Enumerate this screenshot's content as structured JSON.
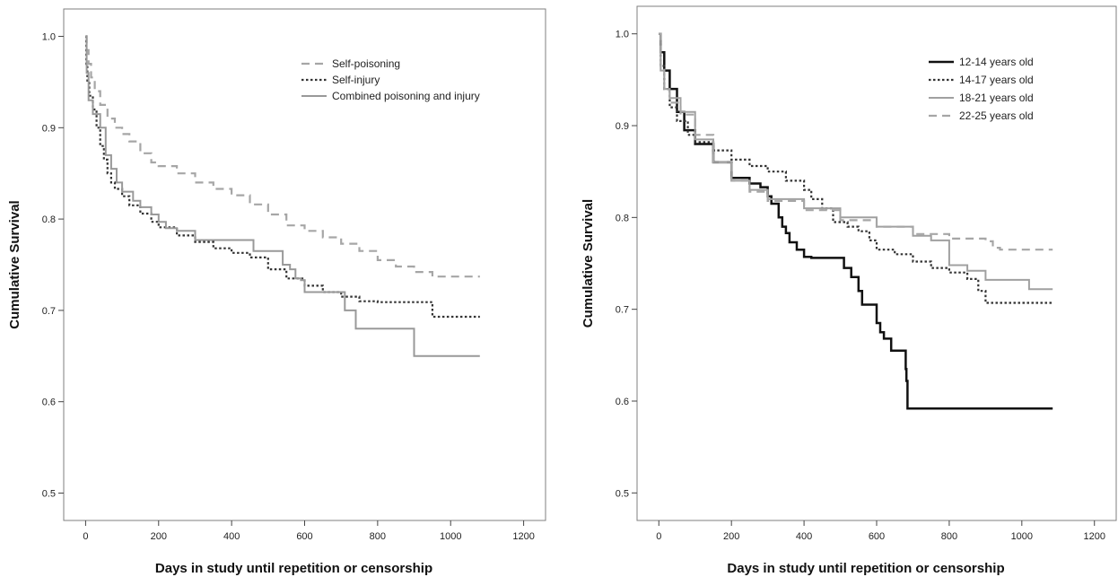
{
  "chart_data": [
    {
      "type": "line",
      "step": true,
      "xlabel": "Days in study until repetition or censorship",
      "ylabel": "Cumulative Survival",
      "xlim": [
        -60,
        1260
      ],
      "ylim": [
        0.47,
        1.03
      ],
      "xticks": [
        0,
        200,
        400,
        600,
        800,
        1000,
        1200
      ],
      "xtick_labels": [
        "0",
        "200",
        "400",
        "600",
        "800",
        "1000",
        "1200"
      ],
      "yticks": [
        0.5,
        0.6,
        0.7,
        0.8,
        0.9,
        1.0
      ],
      "ytick_labels": [
        "0.5",
        "0.6",
        "0.7",
        "0.8",
        "0.9",
        "1.0"
      ],
      "legend_position": "top-right",
      "series": [
        {
          "name": "Self-poisoning",
          "style": "dashed",
          "color": "#a6a6a6",
          "points": [
            [
              0,
              1.0
            ],
            [
              3,
              0.985
            ],
            [
              8,
              0.97
            ],
            [
              15,
              0.955
            ],
            [
              25,
              0.94
            ],
            [
              40,
              0.925
            ],
            [
              60,
              0.91
            ],
            [
              80,
              0.9
            ],
            [
              100,
              0.893
            ],
            [
              120,
              0.885
            ],
            [
              150,
              0.872
            ],
            [
              180,
              0.862
            ],
            [
              200,
              0.858
            ],
            [
              250,
              0.85
            ],
            [
              300,
              0.84
            ],
            [
              350,
              0.833
            ],
            [
              400,
              0.826
            ],
            [
              450,
              0.816
            ],
            [
              500,
              0.805
            ],
            [
              550,
              0.793
            ],
            [
              600,
              0.787
            ],
            [
              650,
              0.78
            ],
            [
              700,
              0.773
            ],
            [
              750,
              0.765
            ],
            [
              800,
              0.755
            ],
            [
              850,
              0.748
            ],
            [
              900,
              0.742
            ],
            [
              950,
              0.737
            ],
            [
              1080,
              0.737
            ]
          ]
        },
        {
          "name": "Self-injury",
          "style": "dotted",
          "color": "#333333",
          "points": [
            [
              0,
              1.0
            ],
            [
              2,
              0.97
            ],
            [
              5,
              0.95
            ],
            [
              10,
              0.935
            ],
            [
              20,
              0.92
            ],
            [
              30,
              0.9
            ],
            [
              40,
              0.88
            ],
            [
              50,
              0.865
            ],
            [
              60,
              0.85
            ],
            [
              70,
              0.84
            ],
            [
              80,
              0.833
            ],
            [
              100,
              0.825
            ],
            [
              120,
              0.815
            ],
            [
              150,
              0.806
            ],
            [
              180,
              0.797
            ],
            [
              200,
              0.791
            ],
            [
              250,
              0.782
            ],
            [
              300,
              0.775
            ],
            [
              350,
              0.768
            ],
            [
              400,
              0.763
            ],
            [
              450,
              0.758
            ],
            [
              500,
              0.745
            ],
            [
              550,
              0.735
            ],
            [
              600,
              0.727
            ],
            [
              650,
              0.72
            ],
            [
              700,
              0.715
            ],
            [
              750,
              0.71
            ],
            [
              800,
              0.709
            ],
            [
              900,
              0.709
            ],
            [
              950,
              0.693
            ],
            [
              1080,
              0.693
            ]
          ]
        },
        {
          "name": "Combined poisoning and injury",
          "style": "solid",
          "color": "#999999",
          "points": [
            [
              0,
              1.0
            ],
            [
              3,
              0.96
            ],
            [
              8,
              0.93
            ],
            [
              20,
              0.915
            ],
            [
              40,
              0.9
            ],
            [
              55,
              0.87
            ],
            [
              70,
              0.855
            ],
            [
              85,
              0.84
            ],
            [
              100,
              0.83
            ],
            [
              130,
              0.82
            ],
            [
              150,
              0.813
            ],
            [
              180,
              0.805
            ],
            [
              200,
              0.797
            ],
            [
              220,
              0.79
            ],
            [
              250,
              0.787
            ],
            [
              300,
              0.777
            ],
            [
              400,
              0.777
            ],
            [
              460,
              0.765
            ],
            [
              500,
              0.765
            ],
            [
              540,
              0.75
            ],
            [
              560,
              0.745
            ],
            [
              575,
              0.735
            ],
            [
              590,
              0.733
            ],
            [
              600,
              0.72
            ],
            [
              700,
              0.72
            ],
            [
              710,
              0.7
            ],
            [
              740,
              0.68
            ],
            [
              900,
              0.65
            ],
            [
              1080,
              0.65
            ]
          ]
        }
      ]
    },
    {
      "type": "line",
      "step": true,
      "xlabel": "Days in study until repetition or censorship",
      "ylabel": "Cumulative Survival",
      "xlim": [
        -60,
        1260
      ],
      "ylim": [
        0.47,
        1.03
      ],
      "xticks": [
        0,
        200,
        400,
        600,
        800,
        1000,
        1200
      ],
      "xtick_labels": [
        "0",
        "200",
        "400",
        "600",
        "800",
        "1000",
        "1200"
      ],
      "yticks": [
        0.5,
        0.6,
        0.7,
        0.8,
        0.9,
        1.0
      ],
      "ytick_labels": [
        "0.5",
        "0.6",
        "0.7",
        "0.8",
        "0.9",
        "1.0"
      ],
      "legend_position": "top-right",
      "series": [
        {
          "name": "12-14 years old",
          "style": "solid-heavy",
          "color": "#111111",
          "points": [
            [
              0,
              1.0
            ],
            [
              5,
              0.98
            ],
            [
              15,
              0.96
            ],
            [
              30,
              0.94
            ],
            [
              50,
              0.915
            ],
            [
              70,
              0.895
            ],
            [
              100,
              0.88
            ],
            [
              150,
              0.86
            ],
            [
              200,
              0.843
            ],
            [
              250,
              0.837
            ],
            [
              280,
              0.833
            ],
            [
              300,
              0.823
            ],
            [
              310,
              0.815
            ],
            [
              330,
              0.8
            ],
            [
              340,
              0.79
            ],
            [
              350,
              0.783
            ],
            [
              360,
              0.773
            ],
            [
              380,
              0.765
            ],
            [
              400,
              0.757
            ],
            [
              420,
              0.756
            ],
            [
              500,
              0.756
            ],
            [
              510,
              0.745
            ],
            [
              530,
              0.735
            ],
            [
              550,
              0.72
            ],
            [
              560,
              0.705
            ],
            [
              590,
              0.705
            ],
            [
              600,
              0.685
            ],
            [
              610,
              0.675
            ],
            [
              620,
              0.668
            ],
            [
              640,
              0.655
            ],
            [
              680,
              0.635
            ],
            [
              682,
              0.622
            ],
            [
              685,
              0.592
            ],
            [
              1085,
              0.592
            ]
          ]
        },
        {
          "name": "14-17 years old",
          "style": "dotted",
          "color": "#333333",
          "points": [
            [
              0,
              1.0
            ],
            [
              5,
              0.965
            ],
            [
              15,
              0.94
            ],
            [
              30,
              0.92
            ],
            [
              50,
              0.905
            ],
            [
              80,
              0.89
            ],
            [
              100,
              0.882
            ],
            [
              150,
              0.873
            ],
            [
              200,
              0.863
            ],
            [
              250,
              0.856
            ],
            [
              300,
              0.85
            ],
            [
              350,
              0.84
            ],
            [
              400,
              0.83
            ],
            [
              420,
              0.82
            ],
            [
              450,
              0.81
            ],
            [
              480,
              0.795
            ],
            [
              520,
              0.79
            ],
            [
              550,
              0.785
            ],
            [
              580,
              0.775
            ],
            [
              600,
              0.765
            ],
            [
              650,
              0.76
            ],
            [
              700,
              0.752
            ],
            [
              750,
              0.745
            ],
            [
              800,
              0.74
            ],
            [
              850,
              0.733
            ],
            [
              880,
              0.72
            ],
            [
              900,
              0.707
            ],
            [
              1085,
              0.707
            ]
          ]
        },
        {
          "name": "18-21 years old",
          "style": "solid",
          "color": "#a0a0a0",
          "points": [
            [
              0,
              1.0
            ],
            [
              5,
              0.96
            ],
            [
              15,
              0.94
            ],
            [
              30,
              0.93
            ],
            [
              60,
              0.915
            ],
            [
              100,
              0.885
            ],
            [
              150,
              0.86
            ],
            [
              200,
              0.84
            ],
            [
              250,
              0.83
            ],
            [
              300,
              0.82
            ],
            [
              400,
              0.81
            ],
            [
              500,
              0.8
            ],
            [
              600,
              0.79
            ],
            [
              700,
              0.78
            ],
            [
              750,
              0.775
            ],
            [
              800,
              0.748
            ],
            [
              850,
              0.742
            ],
            [
              900,
              0.732
            ],
            [
              1000,
              0.732
            ],
            [
              1020,
              0.722
            ],
            [
              1085,
              0.722
            ]
          ]
        },
        {
          "name": "22-25 years old",
          "style": "dashed",
          "color": "#a6a6a6",
          "points": [
            [
              0,
              1.0
            ],
            [
              5,
              0.965
            ],
            [
              15,
              0.94
            ],
            [
              30,
              0.925
            ],
            [
              60,
              0.912
            ],
            [
              100,
              0.89
            ],
            [
              150,
              0.86
            ],
            [
              200,
              0.84
            ],
            [
              250,
              0.828
            ],
            [
              300,
              0.818
            ],
            [
              400,
              0.808
            ],
            [
              500,
              0.797
            ],
            [
              600,
              0.79
            ],
            [
              700,
              0.782
            ],
            [
              800,
              0.777
            ],
            [
              900,
              0.774
            ],
            [
              920,
              0.767
            ],
            [
              940,
              0.765
            ],
            [
              1085,
              0.765
            ]
          ]
        }
      ]
    }
  ]
}
